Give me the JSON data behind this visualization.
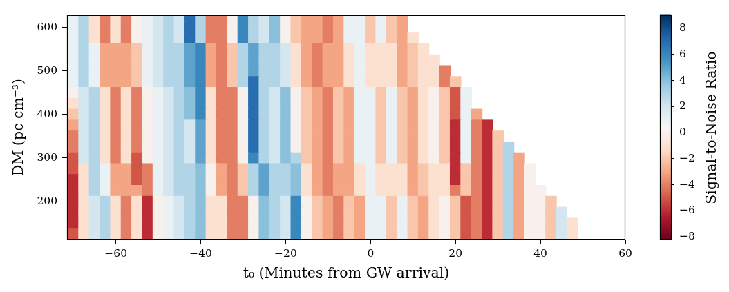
{
  "chart_data": {
    "type": "scatter",
    "marker": "square",
    "xlabel": "t₀ (Minutes from GW arrival)",
    "ylabel": "DM (pc cm⁻³)",
    "clabel": "Signal-to-Noise Ratio",
    "xlim": [
      -71.5,
      60
    ],
    "xticks": [
      -60,
      -40,
      -20,
      0,
      20,
      40,
      60
    ],
    "ylim": [
      113,
      628
    ],
    "yticks": [
      200,
      300,
      400,
      500,
      600
    ],
    "clim": [
      -8.2,
      9
    ],
    "cticks": [
      -8,
      -6,
      -4,
      -2,
      0,
      2,
      4,
      6,
      8
    ],
    "x": [
      -70,
      -67.5,
      -65,
      -62.5,
      -60,
      -57.5,
      -55,
      -52.5,
      -50,
      -47.5,
      -45,
      -42.5,
      -40,
      -37.5,
      -35,
      -32.5,
      -30,
      -27.5,
      -25,
      -22.5,
      -20,
      -17.5,
      -15,
      -12.5,
      -10,
      -7.5,
      -5,
      -2.5,
      0,
      2.5,
      5,
      7.5,
      -70,
      -67.5,
      -65,
      -62.5,
      -60,
      -57.5,
      -55,
      -52.5,
      -50,
      -47.5,
      -45,
      -42.5,
      -40,
      -37.5,
      -35,
      -32.5,
      -30,
      -27.5,
      -25,
      -22.5,
      -20,
      -17.5,
      -15,
      -12.5,
      -10,
      -7.5,
      -5,
      -2.5,
      0,
      2.5,
      5,
      7.5,
      -70,
      -67.5,
      -65,
      -62.5,
      -60,
      -57.5,
      -55,
      -52.5,
      -50,
      -47.5,
      -45,
      -42.5,
      -40,
      -37.5,
      -35,
      -32.5,
      -30,
      -27.5,
      -25,
      -22.5,
      -20,
      -17.5,
      -15,
      -12.5,
      -10,
      -7.5,
      -5,
      -2.5,
      0,
      2.5,
      5,
      7.5,
      10,
      -70,
      -67.5,
      -65,
      -62.5,
      -60,
      -57.5,
      -55,
      -52.5,
      -50,
      -47.5,
      -45,
      -42.5,
      -40,
      -37.5,
      -35,
      -32.5,
      -30,
      -27.5,
      -25,
      -22.5,
      -20,
      -17.5,
      -15,
      -12.5,
      -10,
      -7.5,
      -5,
      -2.5,
      0,
      2.5,
      5,
      7.5,
      10,
      12.5,
      -70,
      -67.5,
      -65,
      -62.5,
      -60,
      -57.5,
      -55,
      -52.5,
      -50,
      -47.5,
      -45,
      -42.5,
      -40,
      -37.5,
      -35,
      -32.5,
      -30,
      -27.5,
      -25,
      -22.5,
      -20,
      -17.5,
      -15,
      -12.5,
      -10,
      -7.5,
      -5,
      -2.5,
      0,
      2.5,
      5,
      7.5,
      10,
      12.5,
      15,
      -70,
      -67.5,
      -65,
      -62.5,
      -60,
      -57.5,
      -55,
      -52.5,
      -50,
      -47.5,
      -45,
      -42.5,
      -40,
      -37.5,
      -35,
      -32.5,
      -30,
      -27.5,
      -25,
      -22.5,
      -20,
      -17.5,
      -15,
      -12.5,
      -10,
      -7.5,
      -5,
      -2.5,
      0,
      2.5,
      5,
      7.5,
      10,
      12.5,
      15,
      17.5,
      -70,
      -67.5,
      -65,
      -62.5,
      -60,
      -57.5,
      -55,
      -52.5,
      -50,
      -47.5,
      -45,
      -42.5,
      -40,
      -37.5,
      -35,
      -32.5,
      -30,
      -27.5,
      -25,
      -22.5,
      -20,
      -17.5,
      -15,
      -12.5,
      -10,
      -7.5,
      -5,
      -2.5,
      0,
      2.5,
      5,
      7.5,
      10,
      12.5,
      15,
      17.5,
      20,
      -70,
      -67.5,
      -65,
      -62.5,
      -60,
      -57.5,
      -55,
      -52.5,
      -50,
      -47.5,
      -45,
      -42.5,
      -40,
      -37.5,
      -35,
      -32.5,
      -30,
      -27.5,
      -25,
      -22.5,
      -20,
      -17.5,
      -15,
      -12.5,
      -10,
      -7.5,
      -5,
      -2.5,
      0,
      2.5,
      5,
      7.5,
      10,
      12.5,
      15,
      17.5,
      20,
      22.5,
      -70,
      -67.5,
      -65,
      -62.5,
      -60,
      -57.5,
      -55,
      -52.5,
      -50,
      -47.5,
      -45,
      -42.5,
      -40,
      -37.5,
      -35,
      -32.5,
      -30,
      -27.5,
      -25,
      -22.5,
      -20,
      -17.5,
      -15,
      -12.5,
      -10,
      -7.5,
      -5,
      -2.5,
      0,
      2.5,
      5,
      7.5,
      10,
      12.5,
      15,
      17.5,
      20,
      22.5,
      -70,
      -67.5,
      -65,
      -62.5,
      -60,
      -57.5,
      -55,
      -52.5,
      -50,
      -47.5,
      -45,
      -42.5,
      -40,
      -37.5,
      -35,
      -32.5,
      -30,
      -27.5,
      -25,
      -22.5,
      -20,
      -17.5,
      -15,
      -12.5,
      -10,
      -7.5,
      -5,
      -2.5,
      0,
      2.5,
      5,
      7.5,
      10,
      12.5,
      15,
      17.5,
      20,
      22.5,
      25,
      -70,
      -67.5,
      -65,
      -62.5,
      -60,
      -57.5,
      -55,
      -52.5,
      -50,
      -47.5,
      -45,
      -42.5,
      -40,
      -37.5,
      -35,
      -32.5,
      -30,
      -27.5,
      -25,
      -22.5,
      -20,
      -17.5,
      -15,
      -12.5,
      -10,
      -7.5,
      -5,
      -2.5,
      0,
      2.5,
      5,
      7.5,
      10,
      12.5,
      15,
      17.5,
      20,
      22.5,
      25,
      27.5,
      -70,
      -67.5,
      -65,
      -62.5,
      -60,
      -57.5,
      -55,
      -52.5,
      -50,
      -47.5,
      -45,
      -42.5,
      -40,
      -37.5,
      -35,
      -32.5,
      -30,
      -27.5,
      -25,
      -22.5,
      -20,
      -17.5,
      -15,
      -12.5,
      -10,
      -7.5,
      -5,
      -2.5,
      0,
      2.5,
      5,
      7.5,
      10,
      12.5,
      15,
      17.5,
      20,
      22.5,
      25,
      27.5,
      30,
      -70,
      -67.5,
      -65,
      -62.5,
      -60,
      -57.5,
      -55,
      -52.5,
      -50,
      -47.5,
      -45,
      -42.5,
      -40,
      -37.5,
      -35,
      -32.5,
      -30,
      -27.5,
      -25,
      -22.5,
      -20,
      -17.5,
      -15,
      -12.5,
      -10,
      -7.5,
      -5,
      -2.5,
      0,
      2.5,
      5,
      7.5,
      10,
      12.5,
      15,
      17.5,
      20,
      22.5,
      25,
      27.5,
      30,
      32.5,
      -70,
      -67.5,
      -65,
      -62.5,
      -60,
      -57.5,
      -55,
      -52.5,
      -50,
      -47.5,
      -45,
      -42.5,
      -40,
      -37.5,
      -35,
      -32.5,
      -30,
      -27.5,
      -25,
      -22.5,
      -20,
      -17.5,
      -15,
      -12.5,
      -10,
      -7.5,
      -5,
      -2.5,
      0,
      2.5,
      5,
      7.5,
      10,
      12.5,
      15,
      17.5,
      20,
      22.5,
      25,
      27.5,
      30,
      32.5,
      35,
      -70,
      -67.5,
      -65,
      -62.5,
      -60,
      -57.5,
      -55,
      -52.5,
      -50,
      -47.5,
      -45,
      -42.5,
      -40,
      -37.5,
      -35,
      -32.5,
      -30,
      -27.5,
      -25,
      -22.5,
      -20,
      -17.5,
      -15,
      -12.5,
      -10,
      -7.5,
      -5,
      -2.5,
      0,
      2.5,
      5,
      7.5,
      10,
      12.5,
      15,
      17.5,
      20,
      22.5,
      25,
      27.5,
      30,
      32.5,
      35,
      37.5,
      -70,
      -67.5,
      -65,
      -62.5,
      -60,
      -57.5,
      -55,
      -52.5,
      -50,
      -47.5,
      -45,
      -42.5,
      -40,
      -37.5,
      -35,
      -32.5,
      -30,
      -27.5,
      -25,
      -22.5,
      -20,
      -17.5,
      -15,
      -12.5,
      -10,
      -7.5,
      -5,
      -2.5,
      0,
      2.5,
      5,
      7.5,
      10,
      12.5,
      15,
      17.5,
      20,
      22.5,
      25,
      27.5,
      30,
      32.5,
      35,
      37.5,
      -70,
      -67.5,
      -65,
      -62.5,
      -60,
      -57.5,
      -55,
      -52.5,
      -50,
      -47.5,
      -45,
      -42.5,
      -40,
      -37.5,
      -35,
      -32.5,
      -30,
      -27.5,
      -25,
      -22.5,
      -20,
      -17.5,
      -15,
      -12.5,
      -10,
      -7.5,
      -5,
      -2.5,
      0,
      2.5,
      5,
      7.5,
      10,
      12.5,
      15,
      17.5,
      20,
      22.5,
      25,
      27.5,
      30,
      32.5,
      35,
      37.5,
      40,
      -70,
      -67.5,
      -65,
      -62.5,
      -60,
      -57.5,
      -55,
      -52.5,
      -50,
      -47.5,
      -45,
      -42.5,
      -40,
      -37.5,
      -35,
      -32.5,
      -30,
      -27.5,
      -25,
      -22.5,
      -20,
      -17.5,
      -15,
      -12.5,
      -10,
      -7.5,
      -5,
      -2.5,
      0,
      2.5,
      5,
      7.5,
      10,
      12.5,
      15,
      17.5,
      20,
      22.5,
      25,
      27.5,
      30,
      32.5,
      35,
      37.5,
      40,
      42.5,
      -70,
      -67.5,
      -65,
      -62.5,
      -60,
      -57.5,
      -55,
      -52.5,
      -50,
      -47.5,
      -45,
      -42.5,
      -40,
      -37.5,
      -35,
      -32.5,
      -30,
      -27.5,
      -25,
      -22.5,
      -20,
      -17.5,
      -15,
      -12.5,
      -10,
      -7.5,
      -5,
      -2.5,
      0,
      2.5,
      5,
      7.5,
      10,
      12.5,
      15,
      17.5,
      20,
      22.5,
      25,
      27.5,
      30,
      32.5,
      35,
      37.5,
      40,
      42.5,
      45,
      -70,
      -67.5,
      -65,
      -62.5,
      -60,
      -57.5,
      -55,
      -52.5,
      -50,
      -47.5,
      -45,
      -42.5,
      -40,
      -37.5,
      -35,
      -32.5,
      -30,
      -27.5,
      -25,
      -22.5,
      -20,
      -17.5,
      -15,
      -12.5,
      -10,
      -7.5,
      -5,
      -2.5,
      0,
      2.5,
      5,
      7.5,
      10,
      12.5,
      15,
      17.5,
      20,
      22.5,
      25,
      27.5,
      30,
      32.5,
      35,
      37.5,
      40,
      42.5,
      45,
      47.5,
      -70,
      -67.5,
      -65,
      -62.5,
      -60,
      -57.5,
      -55,
      -52.5,
      -50,
      -47.5,
      -45,
      -42.5,
      -40,
      -37.5,
      -35,
      -32.5,
      -30,
      -27.5,
      -25,
      -22.5,
      -20,
      -17.5,
      -15,
      -12.5,
      -10,
      -7.5,
      -5,
      -2.5,
      0,
      2.5,
      5,
      7.5,
      10,
      12.5,
      15,
      17.5,
      20,
      22.5,
      25,
      27.5,
      30,
      32.5,
      35,
      37.5,
      40,
      42.5,
      45,
      47.5
    ],
    "values": [
      625,
      625,
      625,
      625,
      625,
      625,
      625,
      625,
      625,
      625,
      625,
      625,
      625,
      625,
      625,
      625,
      625,
      625,
      625,
      625,
      625,
      625,
      625,
      625,
      625,
      625,
      625,
      625,
      625,
      625,
      625,
      625,
      600,
      600,
      600,
      600,
      600,
      600,
      600,
      600,
      600,
      600,
      600,
      600,
      600,
      600,
      600,
      600,
      600,
      600,
      600,
      600,
      600,
      600,
      600,
      600,
      600,
      600,
      600,
      600,
      600,
      600,
      600,
      600,
      575,
      575,
      575,
      575,
      575,
      575,
      575,
      575,
      575,
      575,
      575,
      575,
      575,
      575,
      575,
      575,
      575,
      575,
      575,
      575,
      575,
      575,
      575,
      575,
      575,
      575,
      575,
      575,
      575,
      575,
      575,
      575,
      575,
      550,
      550,
      550,
      550,
      550,
      550,
      550,
      550,
      550,
      550,
      550,
      550,
      550,
      550,
      550,
      550,
      550,
      550,
      550,
      550,
      550,
      550,
      550,
      550,
      550,
      550,
      550,
      550,
      550,
      550,
      550,
      550,
      550,
      550,
      525,
      525,
      525,
      525,
      525,
      525,
      525,
      525,
      525,
      525,
      525,
      525,
      525,
      525,
      525,
      525,
      525,
      525,
      525,
      525,
      525,
      525,
      525,
      525,
      525,
      525,
      525,
      525,
      525,
      525,
      525,
      525,
      525,
      525,
      525,
      500,
      500,
      500,
      500,
      500,
      500,
      500,
      500,
      500,
      500,
      500,
      500,
      500,
      500,
      500,
      500,
      500,
      500,
      500,
      500,
      500,
      500,
      500,
      500,
      500,
      500,
      500,
      500,
      500,
      500,
      500,
      500,
      500,
      500,
      500,
      500,
      475,
      475,
      475,
      475,
      475,
      475,
      475,
      475,
      475,
      475,
      475,
      475,
      475,
      475,
      475,
      475,
      475,
      475,
      475,
      475,
      475,
      475,
      475,
      475,
      475,
      475,
      475,
      475,
      475,
      475,
      475,
      475,
      475,
      475,
      475,
      475,
      475,
      450,
      450,
      450,
      450,
      450,
      450,
      450,
      450,
      450,
      450,
      450,
      450,
      450,
      450,
      450,
      450,
      450,
      450,
      450,
      450,
      450,
      450,
      450,
      450,
      450,
      450,
      450,
      450,
      450,
      450,
      450,
      450,
      450,
      450,
      450,
      450,
      450,
      450,
      425,
      425,
      425,
      425,
      425,
      425,
      425,
      425,
      425,
      425,
      425,
      425,
      425,
      425,
      425,
      425,
      425,
      425,
      425,
      425,
      425,
      425,
      425,
      425,
      425,
      425,
      425,
      425,
      425,
      425,
      425,
      425,
      425,
      425,
      425,
      425,
      425,
      425,
      400,
      400,
      400,
      400,
      400,
      400,
      400,
      400,
      400,
      400,
      400,
      400,
      400,
      400,
      400,
      400,
      400,
      400,
      400,
      400,
      400,
      400,
      400,
      400,
      400,
      400,
      400,
      400,
      400,
      400,
      400,
      400,
      400,
      400,
      400,
      400,
      400,
      400,
      400,
      375,
      375,
      375,
      375,
      375,
      375,
      375,
      375,
      375,
      375,
      375,
      375,
      375,
      375,
      375,
      375,
      375,
      375,
      375,
      375,
      375,
      375,
      375,
      375,
      375,
      375,
      375,
      375,
      375,
      375,
      375,
      375,
      375,
      375,
      375,
      375,
      375,
      375,
      375,
      375,
      350,
      350,
      350,
      350,
      350,
      350,
      350,
      350,
      350,
      350,
      350,
      350,
      350,
      350,
      350,
      350,
      350,
      350,
      350,
      350,
      350,
      350,
      350,
      350,
      350,
      350,
      350,
      350,
      350,
      350,
      350,
      350,
      350,
      350,
      350,
      350,
      350,
      350,
      350,
      350,
      350,
      325,
      325,
      325,
      325,
      325,
      325,
      325,
      325,
      325,
      325,
      325,
      325,
      325,
      325,
      325,
      325,
      325,
      325,
      325,
      325,
      325,
      325,
      325,
      325,
      325,
      325,
      325,
      325,
      325,
      325,
      325,
      325,
      325,
      325,
      325,
      325,
      325,
      325,
      325,
      325,
      325,
      325,
      300,
      300,
      300,
      300,
      300,
      300,
      300,
      300,
      300,
      300,
      300,
      300,
      300,
      300,
      300,
      300,
      300,
      300,
      300,
      300,
      300,
      300,
      300,
      300,
      300,
      300,
      300,
      300,
      300,
      300,
      300,
      300,
      300,
      300,
      300,
      300,
      300,
      300,
      300,
      300,
      300,
      300,
      300,
      275,
      275,
      275,
      275,
      275,
      275,
      275,
      275,
      275,
      275,
      275,
      275,
      275,
      275,
      275,
      275,
      275,
      275,
      275,
      275,
      275,
      275,
      275,
      275,
      275,
      275,
      275,
      275,
      275,
      275,
      275,
      275,
      275,
      275,
      275,
      275,
      275,
      275,
      275,
      275,
      275,
      275,
      275,
      275,
      250,
      250,
      250,
      250,
      250,
      250,
      250,
      250,
      250,
      250,
      250,
      250,
      250,
      250,
      250,
      250,
      250,
      250,
      250,
      250,
      250,
      250,
      250,
      250,
      250,
      250,
      250,
      250,
      250,
      250,
      250,
      250,
      250,
      250,
      250,
      250,
      250,
      250,
      250,
      250,
      250,
      250,
      250,
      250,
      225,
      225,
      225,
      225,
      225,
      225,
      225,
      225,
      225,
      225,
      225,
      225,
      225,
      225,
      225,
      225,
      225,
      225,
      225,
      225,
      225,
      225,
      225,
      225,
      225,
      225,
      225,
      225,
      225,
      225,
      225,
      225,
      225,
      225,
      225,
      225,
      225,
      225,
      225,
      225,
      225,
      225,
      225,
      225,
      225,
      200,
      200,
      200,
      200,
      200,
      200,
      200,
      200,
      200,
      200,
      200,
      200,
      200,
      200,
      200,
      200,
      200,
      200,
      200,
      200,
      200,
      200,
      200,
      200,
      200,
      200,
      200,
      200,
      200,
      200,
      200,
      200,
      200,
      200,
      200,
      200,
      200,
      200,
      200,
      200,
      200,
      200,
      200,
      200,
      200,
      200,
      175,
      175,
      175,
      175,
      175,
      175,
      175,
      175,
      175,
      175,
      175,
      175,
      175,
      175,
      175,
      175,
      175,
      175,
      175,
      175,
      175,
      175,
      175,
      175,
      175,
      175,
      175,
      175,
      175,
      175,
      175,
      175,
      175,
      175,
      175,
      175,
      175,
      175,
      175,
      175,
      175,
      175,
      175,
      175,
      175,
      175,
      175,
      150,
      150,
      150,
      150,
      150,
      150,
      150,
      150,
      150,
      150,
      150,
      150,
      150,
      150,
      150,
      150,
      150,
      150,
      150,
      150,
      150,
      150,
      150,
      150,
      150,
      150,
      150,
      150,
      150,
      150,
      150,
      150,
      150,
      150,
      150,
      150,
      150,
      150,
      150,
      150,
      150,
      150,
      150,
      150,
      150,
      150,
      150,
      150,
      125,
      125,
      125,
      125,
      125,
      125,
      125,
      125,
      125,
      125,
      125,
      125,
      125,
      125,
      125,
      125,
      125,
      125,
      125,
      125,
      125,
      125,
      125,
      125,
      125,
      125,
      125,
      125,
      125,
      125,
      125,
      125,
      125,
      125,
      125,
      125,
      125,
      125,
      125,
      125,
      125,
      125,
      125,
      125,
      125,
      125,
      125,
      125
    ],
    "cvalues": [
      1,
      3,
      -1,
      -4,
      -1,
      -4,
      0,
      1,
      2,
      3,
      2,
      7,
      3,
      -4,
      -4,
      0,
      6,
      3,
      2,
      4,
      0,
      -2,
      -3,
      -3,
      -4,
      -3,
      1,
      1,
      -2,
      1,
      -2,
      -3,
      1,
      3,
      -1,
      -4,
      -1,
      -4,
      0,
      1,
      2,
      3,
      2,
      7,
      3,
      -4,
      -4,
      0,
      6,
      3,
      2,
      4,
      0,
      -2,
      -3,
      -3,
      -4,
      -3,
      1,
      1,
      -2,
      1,
      -2,
      -3,
      1,
      3,
      -1,
      -4,
      -1,
      -4,
      0,
      1,
      2,
      3,
      2,
      7,
      3,
      -4,
      -4,
      0,
      6,
      3,
      2,
      4,
      0,
      -2,
      -3,
      -3,
      -4,
      -3,
      1,
      1,
      -2,
      1,
      -2,
      -3,
      -1,
      1,
      3,
      1,
      -3,
      -3,
      -3,
      -2,
      1,
      2,
      3,
      3,
      5,
      6,
      -3,
      -4,
      -2,
      3,
      5,
      3,
      3,
      2,
      -1,
      -3,
      -4,
      -3,
      -3,
      -1,
      1,
      -1,
      -1,
      -1,
      -3,
      -2,
      -1,
      1,
      3,
      1,
      -3,
      -3,
      -3,
      -2,
      1,
      2,
      3,
      3,
      5,
      6,
      -3,
      -4,
      -2,
      3,
      5,
      3,
      3,
      2,
      -1,
      -3,
      -4,
      -3,
      -3,
      -1,
      1,
      -1,
      -1,
      -1,
      -3,
      -2,
      -1,
      -1,
      1,
      3,
      1,
      -3,
      -3,
      -3,
      -2,
      1,
      2,
      3,
      3,
      5,
      6,
      -3,
      -4,
      -2,
      3,
      5,
      3,
      3,
      2,
      -1,
      -3,
      -4,
      -3,
      -3,
      -1,
      1,
      -1,
      -1,
      -1,
      -3,
      -2,
      -1,
      -1,
      -4,
      1,
      3,
      1,
      -3,
      -3,
      -3,
      -2,
      1,
      2,
      3,
      3,
      5,
      6,
      -3,
      -4,
      -2,
      3,
      7,
      3,
      3,
      2,
      -1,
      -3,
      -4,
      -3,
      -3,
      -1,
      1,
      -1,
      -1,
      -1,
      -3,
      -2,
      -1,
      -1,
      -4,
      -2,
      0,
      2,
      3,
      -1,
      -4,
      -1,
      -4,
      0,
      1,
      2,
      3,
      4,
      6,
      -1,
      -4,
      -4,
      0,
      7,
      3,
      2,
      4,
      0,
      -2,
      -3,
      -4,
      -2,
      -3,
      1,
      1,
      -2,
      1,
      -2,
      -3,
      -1,
      0,
      -2,
      -5,
      1,
      -1,
      2,
      3,
      -1,
      -4,
      -1,
      -4,
      0,
      1,
      2,
      3,
      4,
      6,
      -1,
      -4,
      -4,
      0,
      7,
      3,
      2,
      4,
      0,
      -2,
      -3,
      -4,
      -2,
      -3,
      1,
      1,
      -2,
      1,
      -2,
      -3,
      -1,
      0,
      -2,
      -5,
      1,
      -2,
      2,
      3,
      -1,
      -4,
      -1,
      -4,
      0,
      1,
      2,
      3,
      4,
      6,
      -1,
      -4,
      -4,
      0,
      7,
      3,
      2,
      4,
      0,
      -2,
      -3,
      -4,
      -2,
      -3,
      1,
      1,
      -2,
      1,
      -2,
      -3,
      -1,
      0,
      -2,
      -5,
      1,
      -3,
      -3,
      2,
      3,
      -1,
      -4,
      -1,
      -4,
      0,
      1,
      2,
      3,
      2,
      5,
      -1,
      -4,
      -4,
      0,
      7,
      3,
      2,
      4,
      0,
      -2,
      -3,
      -4,
      -2,
      -3,
      1,
      1,
      -2,
      1,
      -2,
      -3,
      -1,
      0,
      -2,
      -6,
      1,
      -4,
      -6,
      -4,
      2,
      3,
      -1,
      -4,
      -1,
      -4,
      0,
      1,
      2,
      3,
      2,
      5,
      -1,
      -4,
      -4,
      0,
      7,
      3,
      2,
      4,
      0,
      -2,
      -3,
      -4,
      -2,
      -3,
      1,
      1,
      -2,
      1,
      -2,
      -3,
      -1,
      0,
      -2,
      -6,
      1,
      -4,
      -6,
      -2,
      -4,
      2,
      3,
      -1,
      -4,
      -1,
      -4,
      0,
      1,
      2,
      3,
      2,
      5,
      -1,
      -4,
      -4,
      0,
      7,
      3,
      2,
      4,
      0,
      -2,
      -3,
      -4,
      -2,
      -3,
      1,
      1,
      -2,
      1,
      -2,
      -3,
      -1,
      0,
      -2,
      -6,
      1,
      -4,
      -6,
      -2,
      3,
      -5,
      2,
      3,
      -1,
      -4,
      -1,
      -5,
      0,
      1,
      2,
      3,
      2,
      5,
      -1,
      -4,
      -4,
      0,
      6,
      3,
      2,
      4,
      3,
      -2,
      -3,
      -4,
      -2,
      -3,
      1,
      1,
      -2,
      1,
      -2,
      -3,
      -1,
      0,
      -2,
      -6,
      1,
      -4,
      -6,
      -2,
      3,
      -3,
      -5,
      -1,
      3,
      1,
      -3,
      -3,
      -5,
      -4,
      1,
      2,
      3,
      3,
      4,
      0,
      -3,
      -4,
      -2,
      3,
      5,
      3,
      3,
      4,
      -1,
      -3,
      -4,
      -3,
      -3,
      -1,
      1,
      -1,
      -1,
      -1,
      -3,
      -2,
      -1,
      -1,
      -6,
      -2,
      -4,
      -6,
      -2,
      3,
      -3,
      0,
      -6,
      -1,
      3,
      1,
      -3,
      -3,
      -5,
      -4,
      1,
      2,
      3,
      3,
      4,
      0,
      -3,
      -4,
      -2,
      3,
      5,
      3,
      3,
      4,
      -1,
      -3,
      -4,
      -3,
      -3,
      -1,
      1,
      -1,
      -1,
      -1,
      -3,
      -2,
      -1,
      -1,
      -6,
      -2,
      -4,
      -6,
      -2,
      3,
      -3,
      0,
      -6,
      -1,
      3,
      1,
      -3,
      -3,
      -3,
      -4,
      1,
      2,
      3,
      3,
      4,
      0,
      -3,
      -4,
      -2,
      3,
      5,
      3,
      3,
      4,
      -1,
      -3,
      -4,
      -3,
      -3,
      -1,
      1,
      -1,
      -1,
      -1,
      -3,
      -2,
      -1,
      -1,
      -4,
      -2,
      -4,
      -6,
      -2,
      3,
      -3,
      0,
      0,
      -6,
      -1,
      2,
      3,
      -1,
      -4,
      -1,
      -6,
      0,
      1,
      2,
      3,
      4,
      -1,
      -1,
      -4,
      -4,
      0,
      4,
      3,
      2,
      6,
      0,
      -2,
      -3,
      -4,
      -2,
      -3,
      1,
      1,
      -2,
      1,
      -2,
      -3,
      -1,
      0,
      -2,
      -5,
      -4,
      -6,
      -2,
      3,
      -3,
      0,
      0,
      -2,
      -6,
      -1,
      2,
      3,
      -1,
      -4,
      -1,
      -6,
      0,
      1,
      2,
      3,
      4,
      -1,
      -1,
      -4,
      -4,
      0,
      4,
      3,
      2,
      6,
      0,
      -2,
      -3,
      -4,
      -2,
      -3,
      1,
      1,
      -2,
      1,
      -2,
      -3,
      -1,
      0,
      -2,
      -5,
      -4,
      -6,
      -2,
      3,
      -3,
      0,
      0,
      -2,
      2,
      -6,
      -1,
      2,
      3,
      -1,
      -4,
      -1,
      -6,
      0,
      1,
      2,
      3,
      4,
      -1,
      -1,
      -4,
      -4,
      0,
      4,
      3,
      2,
      6,
      0,
      -2,
      -3,
      -4,
      -2,
      -3,
      1,
      1,
      -2,
      1,
      -2,
      -3,
      -1,
      0,
      -2,
      -5,
      -4,
      -6,
      -2,
      3,
      -3,
      0,
      0,
      -2,
      2,
      -1,
      -5,
      -1,
      2,
      3,
      -1,
      -4,
      -1,
      -6,
      0,
      1,
      2,
      3,
      4,
      -1,
      -1,
      -4,
      -4,
      0,
      4,
      3,
      2,
      6,
      0,
      -2,
      -3,
      -4,
      -2,
      -3,
      1,
      1,
      -2,
      1,
      -2,
      -3,
      -1,
      0,
      -2,
      -5,
      -4,
      -6,
      -2,
      3,
      -3,
      0,
      0,
      -2,
      2,
      -1
    ]
  }
}
